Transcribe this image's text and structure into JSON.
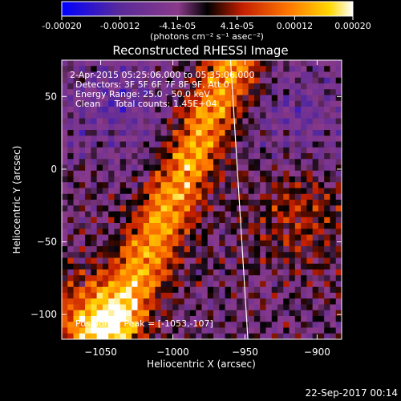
{
  "chart_data": {
    "type": "heatmap",
    "title": "Reconstructed RHESSI Image",
    "xlabel": "Heliocentric X (arcsec)",
    "ylabel": "Heliocentric Y (arcsec)",
    "xlim": [
      -1077,
      -883
    ],
    "ylim": [
      -117,
      75
    ],
    "x_ticks": [
      -1050,
      -1000,
      -950,
      -900
    ],
    "y_ticks": [
      -100,
      -50,
      0,
      50
    ],
    "colorbar": {
      "range": [
        -0.0002,
        0.0002
      ],
      "ticks": [
        -0.0002,
        -0.00012,
        -4.1e-05,
        4.1e-05,
        0.00012,
        0.0002
      ],
      "tick_labels": [
        "-0.00020",
        "-0.00012",
        "-4.1e-05",
        "4.1e-05",
        "0.00012",
        "0.00020"
      ],
      "units_label": "(photons cm⁻² s⁻¹ asec⁻²)",
      "colors": [
        "#0000ff",
        "#5a2a9a",
        "#8a3a8a",
        "#000000",
        "#c41e00",
        "#ff7800",
        "#ffd800",
        "#ffffff"
      ]
    },
    "annotations": [
      "2-Apr-2015 05:25:06.000 to 05:35:06.000",
      "Detectors: 3F 5F 6F 7F 8F 9F, Att 0",
      "Energy Range: 25.0 - 50.0 keV",
      "Clean     Total counts: 1.45E+04",
      "Position of Peak = [-1053,-107]"
    ],
    "limb_line": {
      "x": [
        -960,
        -948
      ],
      "y": [
        75,
        -117
      ]
    },
    "peak_position": [
      -1053,
      -107
    ],
    "grid": false
  },
  "footer": {
    "timestamp": "22-Sep-2017 00:14"
  }
}
